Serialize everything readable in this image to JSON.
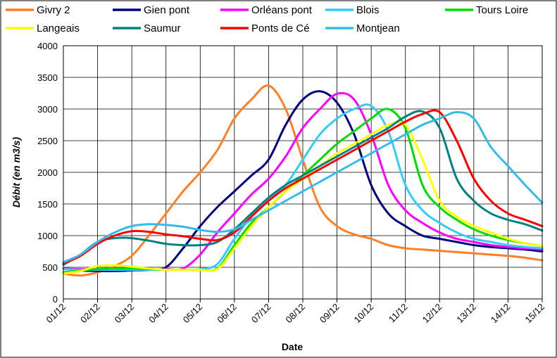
{
  "chart_data": {
    "type": "line",
    "xlabel": "Date",
    "ylabel": "Débit (en m3/s)",
    "ylim": [
      0,
      4000
    ],
    "yticks": [
      0,
      500,
      1000,
      1500,
      2000,
      2500,
      3000,
      3500,
      4000
    ],
    "x_tick_labels": [
      "01/12",
      "02/12",
      "03/12",
      "04/12",
      "05/12",
      "06/12",
      "07/12",
      "08/12",
      "09/12",
      "10/12",
      "11/12",
      "12/12",
      "13/12",
      "14/12",
      "15/12"
    ],
    "x": [
      1,
      1.5,
      2,
      2.5,
      3,
      3.5,
      4,
      4.5,
      5,
      5.5,
      6,
      6.5,
      7,
      7.5,
      8,
      8.5,
      9,
      9.5,
      10,
      10.5,
      11,
      11.5,
      12,
      12.5,
      13,
      13.5,
      14,
      14.5,
      15
    ],
    "grid": true,
    "legend_position": "top",
    "series": [
      {
        "name": "Givry 2",
        "color": "#FF7F27",
        "values": [
          400,
          370,
          420,
          520,
          680,
          1000,
          1350,
          1700,
          2000,
          2350,
          2850,
          3150,
          3370,
          3000,
          2200,
          1450,
          1150,
          1020,
          950,
          850,
          800,
          780,
          760,
          740,
          720,
          700,
          680,
          650,
          610
        ]
      },
      {
        "name": "Gien pont",
        "color": "#000080",
        "values": [
          480,
          450,
          440,
          440,
          450,
          460,
          500,
          800,
          1150,
          1450,
          1700,
          1950,
          2200,
          2750,
          3150,
          3280,
          3100,
          2600,
          1800,
          1350,
          1150,
          1000,
          950,
          900,
          850,
          820,
          800,
          780,
          750
        ]
      },
      {
        "name": "Orléans pont",
        "color": "#FF00FF",
        "values": [
          480,
          470,
          470,
          470,
          460,
          460,
          470,
          480,
          700,
          1050,
          1350,
          1650,
          1900,
          2250,
          2700,
          3000,
          3240,
          3150,
          2600,
          1800,
          1400,
          1200,
          1050,
          950,
          900,
          850,
          820,
          800,
          780
        ]
      },
      {
        "name": "Blois",
        "color": "#33CCFF",
        "values": [
          470,
          460,
          460,
          460,
          460,
          460,
          460,
          460,
          470,
          550,
          950,
          1300,
          1550,
          1800,
          2200,
          2600,
          2850,
          3000,
          3050,
          2650,
          1800,
          1400,
          1200,
          1050,
          950,
          900,
          850,
          820,
          800
        ]
      },
      {
        "name": "Tours Loire",
        "color": "#00DD00",
        "values": [
          420,
          450,
          470,
          480,
          480,
          470,
          460,
          460,
          460,
          480,
          850,
          1200,
          1450,
          1700,
          1950,
          2200,
          2450,
          2650,
          2850,
          3000,
          2700,
          1800,
          1450,
          1250,
          1100,
          1000,
          930,
          880,
          830
        ]
      },
      {
        "name": "Langeais",
        "color": "#FFFF00",
        "values": [
          400,
          440,
          520,
          530,
          510,
          480,
          460,
          460,
          460,
          470,
          800,
          1150,
          1450,
          1700,
          1900,
          2100,
          2300,
          2450,
          2600,
          2750,
          2750,
          2200,
          1550,
          1300,
          1150,
          1050,
          950,
          880,
          830
        ]
      },
      {
        "name": "Saumur",
        "color": "#008080",
        "values": [
          540,
          700,
          900,
          960,
          960,
          920,
          870,
          850,
          850,
          900,
          1100,
          1350,
          1600,
          1800,
          1950,
          2100,
          2250,
          2400,
          2550,
          2700,
          2880,
          2960,
          2700,
          1900,
          1550,
          1350,
          1250,
          1180,
          1080
        ]
      },
      {
        "name": "Ponts de Cé",
        "color": "#FF0000",
        "values": [
          560,
          680,
          870,
          1000,
          1070,
          1060,
          1020,
          990,
          950,
          930,
          1050,
          1300,
          1550,
          1750,
          1900,
          2050,
          2200,
          2350,
          2500,
          2650,
          2800,
          2920,
          2950,
          2500,
          1900,
          1550,
          1350,
          1250,
          1150
        ]
      },
      {
        "name": "Montjean",
        "color": "#33BBEE",
        "values": [
          580,
          700,
          900,
          1050,
          1150,
          1180,
          1170,
          1140,
          1090,
          1060,
          1100,
          1250,
          1400,
          1550,
          1700,
          1850,
          2000,
          2150,
          2300,
          2450,
          2600,
          2750,
          2850,
          2950,
          2850,
          2400,
          2100,
          1800,
          1520
        ]
      }
    ]
  }
}
